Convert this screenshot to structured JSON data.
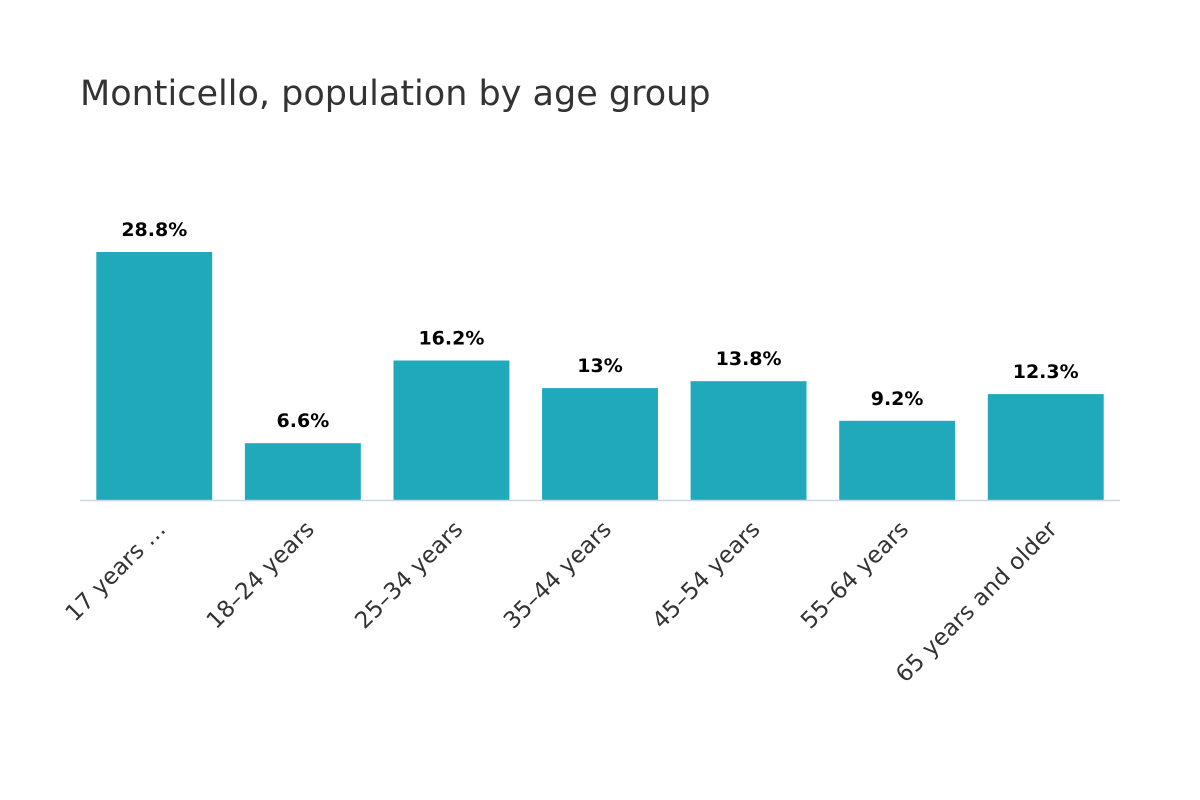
{
  "title": "Monticello, population by age group",
  "colors": {
    "bar": "#1fa9ba",
    "axis": "#ccd6eb"
  },
  "chart_data": {
    "type": "bar",
    "title": "Monticello, population by age group",
    "xlabel": "",
    "ylabel": "",
    "categories": [
      "17 years …",
      "18–24 years",
      "25–34 years",
      "35–44 years",
      "45–54 years",
      "55–64 years",
      "65 years and older"
    ],
    "values": [
      28.8,
      6.6,
      16.2,
      13,
      13.8,
      9.2,
      12.3
    ],
    "value_labels": [
      "28.8%",
      "6.6%",
      "16.2%",
      "13%",
      "13.8%",
      "9.2%",
      "12.3%"
    ],
    "unit": "%",
    "ylim": [
      0,
      30
    ],
    "grid": false,
    "legend": "none"
  }
}
